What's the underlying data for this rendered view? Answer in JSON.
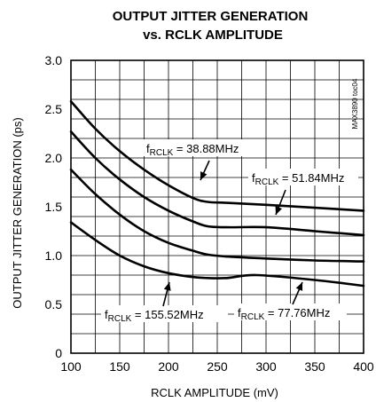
{
  "chart_data": {
    "type": "line",
    "title": "OUTPUT JITTER GENERATION",
    "subtitle": "vs. RCLK AMPLITUDE",
    "xlabel": "RCLK AMPLITUDE (mV)",
    "ylabel": "OUTPUT JITTER GENERATION (ps)",
    "xlim": [
      100,
      400
    ],
    "ylim": [
      0,
      3.0
    ],
    "grid": true,
    "x_ticks": [
      "100",
      "150",
      "200",
      "250",
      "300",
      "350",
      "400"
    ],
    "y_ticks": [
      "0",
      "0.5",
      "1.0",
      "1.5",
      "2.0",
      "2.5",
      "3.0"
    ],
    "part_code": "MAX3890 toc04",
    "series": [
      {
        "name": "f_RCLK = 38.88MHz",
        "x": [
          100,
          125,
          150,
          175,
          200,
          225,
          240,
          260,
          300,
          350,
          400
        ],
        "y": [
          2.58,
          2.3,
          2.07,
          1.88,
          1.72,
          1.59,
          1.55,
          1.54,
          1.52,
          1.49,
          1.46
        ]
      },
      {
        "name": "f_RCLK = 51.84MHz",
        "x": [
          100,
          125,
          150,
          175,
          200,
          225,
          240,
          260,
          300,
          350,
          400
        ],
        "y": [
          2.27,
          2.0,
          1.78,
          1.6,
          1.46,
          1.35,
          1.3,
          1.29,
          1.29,
          1.25,
          1.21
        ]
      },
      {
        "name": "f_RCLK = 77.76MHz",
        "x": [
          100,
          125,
          150,
          175,
          200,
          225,
          240,
          260,
          300,
          350,
          400
        ],
        "y": [
          1.88,
          1.63,
          1.42,
          1.25,
          1.13,
          1.05,
          1.01,
          0.99,
          0.97,
          0.95,
          0.94
        ]
      },
      {
        "name": "f_RCLK = 155.52MHz",
        "x": [
          100,
          125,
          150,
          175,
          200,
          225,
          240,
          260,
          290,
          350,
          400
        ],
        "y": [
          1.34,
          1.16,
          1.0,
          0.89,
          0.82,
          0.78,
          0.77,
          0.77,
          0.8,
          0.75,
          0.69
        ]
      }
    ],
    "annotations": [
      {
        "main": "f",
        "sub": "RCLK",
        "rest": " = 38.88MHz"
      },
      {
        "main": "f",
        "sub": "RCLK",
        "rest": " = 51.84MHz"
      },
      {
        "main": "f",
        "sub": "RCLK",
        "rest": " = 77.76MHz"
      },
      {
        "main": "f",
        "sub": "RCLK",
        "rest": " = 155.52MHz"
      }
    ]
  }
}
